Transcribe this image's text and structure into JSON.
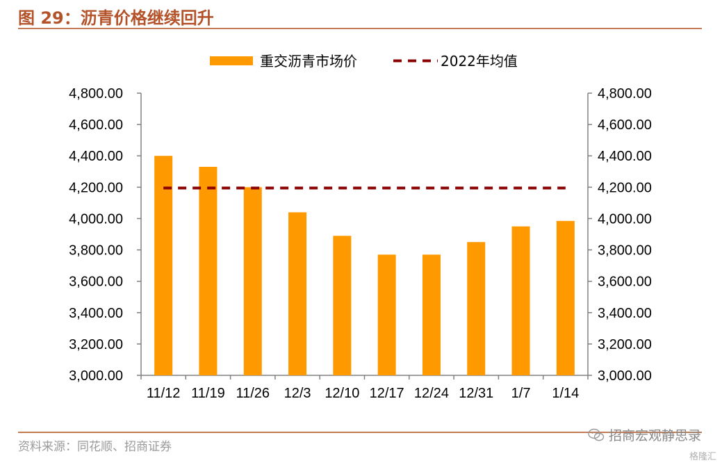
{
  "figure": {
    "title": "图 29：沥青价格继续回升",
    "source": "资料来源：同花顺、招商证券",
    "watermark": "招商宏观静思录",
    "corner_brand": "格隆汇"
  },
  "colors": {
    "bar": "#FF9900",
    "avg_line": "#8B0000",
    "axis": "#808080",
    "title": "#b4532a"
  },
  "chart_data": {
    "type": "bar",
    "categories": [
      "11/12",
      "11/19",
      "11/26",
      "12/3",
      "12/10",
      "12/17",
      "12/24",
      "12/31",
      "1/7",
      "1/14"
    ],
    "series": [
      {
        "name": "重交沥青市场价",
        "values": [
          4400,
          4330,
          4200,
          4040,
          3890,
          3770,
          3770,
          3850,
          3950,
          3985
        ]
      },
      {
        "name": "2022年均值",
        "type": "line",
        "style": "dashed",
        "values": [
          4195,
          4195,
          4195,
          4195,
          4195,
          4195,
          4195,
          4195,
          4195,
          4195
        ]
      }
    ],
    "ylim": [
      3000,
      4800
    ],
    "y_ticks": [
      "4,800.00",
      "4,600.00",
      "4,400.00",
      "4,200.00",
      "4,000.00",
      "3,800.00",
      "3,600.00",
      "3,400.00",
      "3,200.00",
      "3,000.00"
    ],
    "y_tick_values": [
      4800,
      4600,
      4400,
      4200,
      4000,
      3800,
      3600,
      3400,
      3200,
      3000
    ],
    "secondary_y": true,
    "grid": false,
    "legend_position": "top-center"
  }
}
